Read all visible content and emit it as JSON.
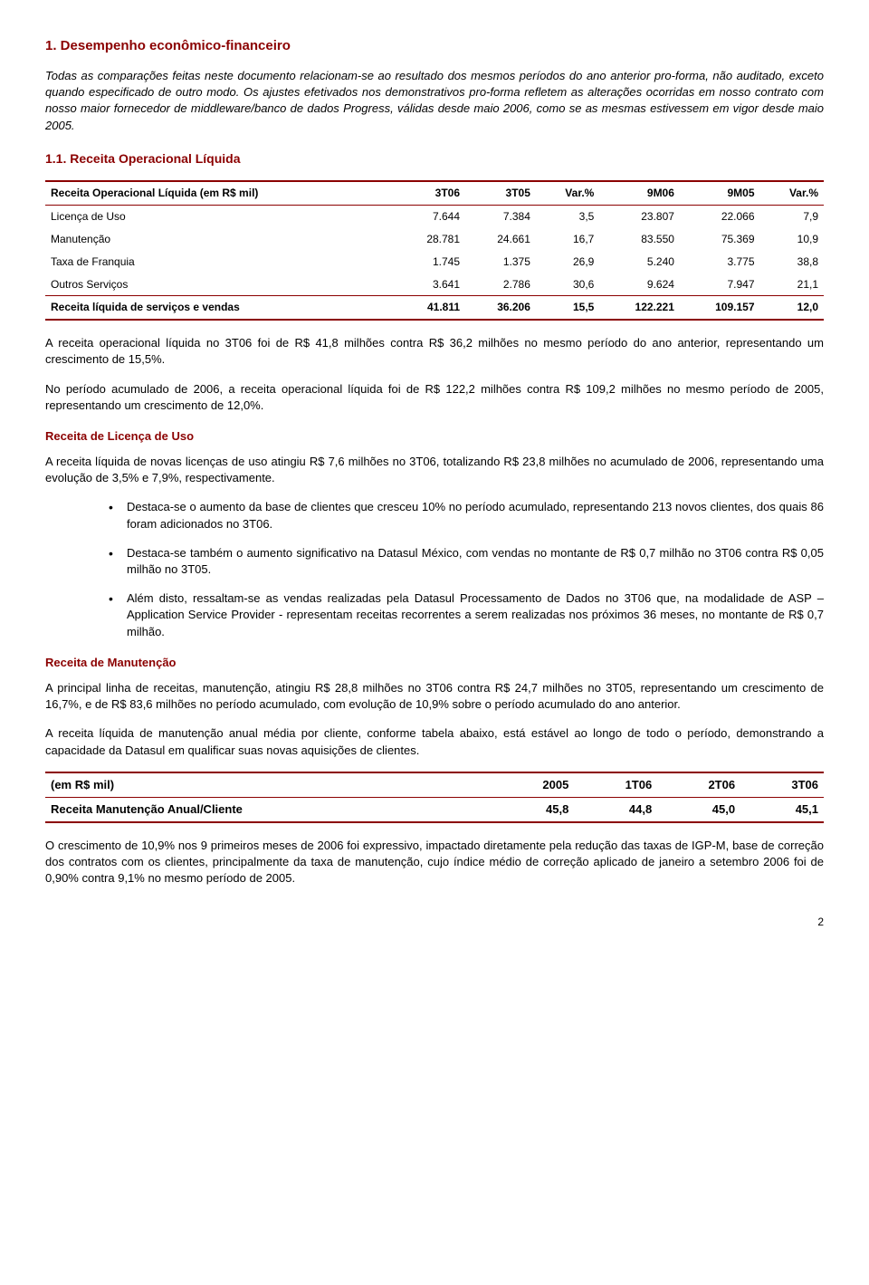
{
  "section_title": "1. Desempenho econômico-financeiro",
  "intro_para": "Todas as comparações feitas neste documento relacionam-se ao resultado dos mesmos períodos do ano anterior pro-forma, não auditado, exceto quando especificado de outro modo. Os ajustes efetivados nos demonstrativos pro-forma refletem as alterações ocorridas em nosso contrato com nosso maior fornecedor de middleware/banco de dados Progress, válidas desde maio 2006, como se as mesmas estivessem em vigor desde maio 2005.",
  "subsection_title": "1.1. Receita Operacional Líquida",
  "table1": {
    "columns": [
      "Receita Operacional Líquida (em R$ mil)",
      "3T06",
      "3T05",
      "Var.%",
      "9M06",
      "9M05",
      "Var.%"
    ],
    "rows": [
      [
        "Licença de Uso",
        "7.644",
        "7.384",
        "3,5",
        "23.807",
        "22.066",
        "7,9"
      ],
      [
        "Manutenção",
        "28.781",
        "24.661",
        "16,7",
        "83.550",
        "75.369",
        "10,9"
      ],
      [
        "Taxa de Franquia",
        "1.745",
        "1.375",
        "26,9",
        "5.240",
        "3.775",
        "38,8"
      ],
      [
        "Outros Serviços",
        "3.641",
        "2.786",
        "30,6",
        "9.624",
        "7.947",
        "21,1"
      ],
      [
        "Receita líquida de serviços e vendas",
        "41.811",
        "36.206",
        "15,5",
        "122.221",
        "109.157",
        "12,0"
      ]
    ]
  },
  "p1": "A receita operacional líquida no 3T06 foi de R$ 41,8 milhões contra R$ 36,2 milhões no mesmo período do ano anterior, representando um crescimento de 15,5%.",
  "p2": "No período acumulado de 2006, a receita operacional líquida foi de R$ 122,2 milhões contra R$ 109,2 milhões no mesmo período de 2005, representando um crescimento de 12,0%.",
  "h_licenca": "Receita de Licença de Uso",
  "p3": "A receita líquida de novas licenças de uso atingiu R$ 7,6 milhões no 3T06, totalizando R$ 23,8 milhões no acumulado de 2006, representando uma evolução de 3,5% e 7,9%, respectivamente.",
  "bullets": [
    "Destaca-se o aumento da base de clientes que cresceu 10% no período acumulado, representando 213 novos clientes, dos quais 86 foram adicionados no 3T06.",
    "Destaca-se também o aumento significativo na Datasul México, com vendas no montante de R$ 0,7 milhão no 3T06 contra R$ 0,05 milhão no 3T05.",
    "Além disto, ressaltam-se as vendas realizadas pela Datasul Processamento de Dados no 3T06 que, na modalidade de ASP – Application Service Provider - representam receitas recorrentes a serem realizadas nos próximos 36 meses, no montante de R$ 0,7 milhão."
  ],
  "h_manutencao": "Receita de Manutenção",
  "p4": "A principal linha de receitas, manutenção, atingiu R$ 28,8 milhões no 3T06 contra R$ 24,7 milhões no 3T05, representando um crescimento de 16,7%, e de R$ 83,6 milhões no período acumulado, com evolução de 10,9% sobre o período acumulado do ano anterior.",
  "p5": "A receita líquida de manutenção anual média por cliente, conforme tabela abaixo, está estável ao longo de todo o período, demonstrando a capacidade da Datasul em qualificar suas novas aquisições de clientes.",
  "table2": {
    "columns": [
      "(em R$ mil)",
      "2005",
      "1T06",
      "2T06",
      "3T06"
    ],
    "rows": [
      [
        "Receita Manutenção Anual/Cliente",
        "45,8",
        "44,8",
        "45,0",
        "45,1"
      ]
    ]
  },
  "p6": "O crescimento de 10,9% nos 9 primeiros meses de 2006 foi expressivo, impactado diretamente pela redução das taxas de IGP-M, base de correção dos contratos com os clientes, principalmente da taxa de manutenção, cujo índice médio de correção aplicado de janeiro a setembro 2006 foi de 0,90% contra 9,1% no mesmo período de 2005.",
  "pagenum": "2",
  "colors": {
    "accent": "#8b0000",
    "text": "#000000",
    "background": "#ffffff"
  }
}
